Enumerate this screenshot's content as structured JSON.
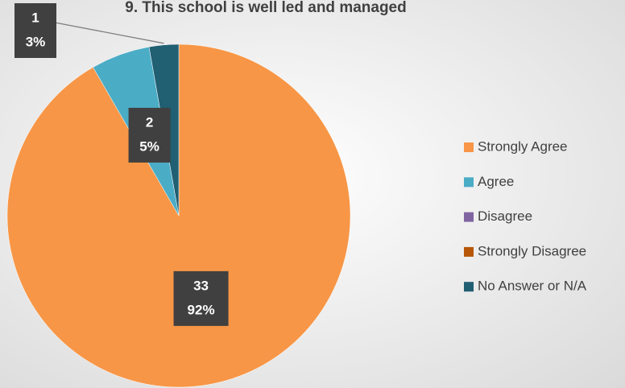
{
  "chart_data": {
    "type": "pie",
    "title": "9. This school is well led and managed",
    "categories": [
      "Strongly Agree",
      "Agree",
      "Disagree",
      "Strongly Disagree",
      "No Answer or N/A"
    ],
    "values": [
      33,
      2,
      0,
      0,
      1
    ],
    "percent_labels": [
      "92%",
      "5%",
      null,
      null,
      "3%"
    ],
    "colors": [
      "#f79646",
      "#4bacc6",
      "#8064a2",
      "#b65708",
      "#215f73"
    ],
    "legend": "right"
  }
}
